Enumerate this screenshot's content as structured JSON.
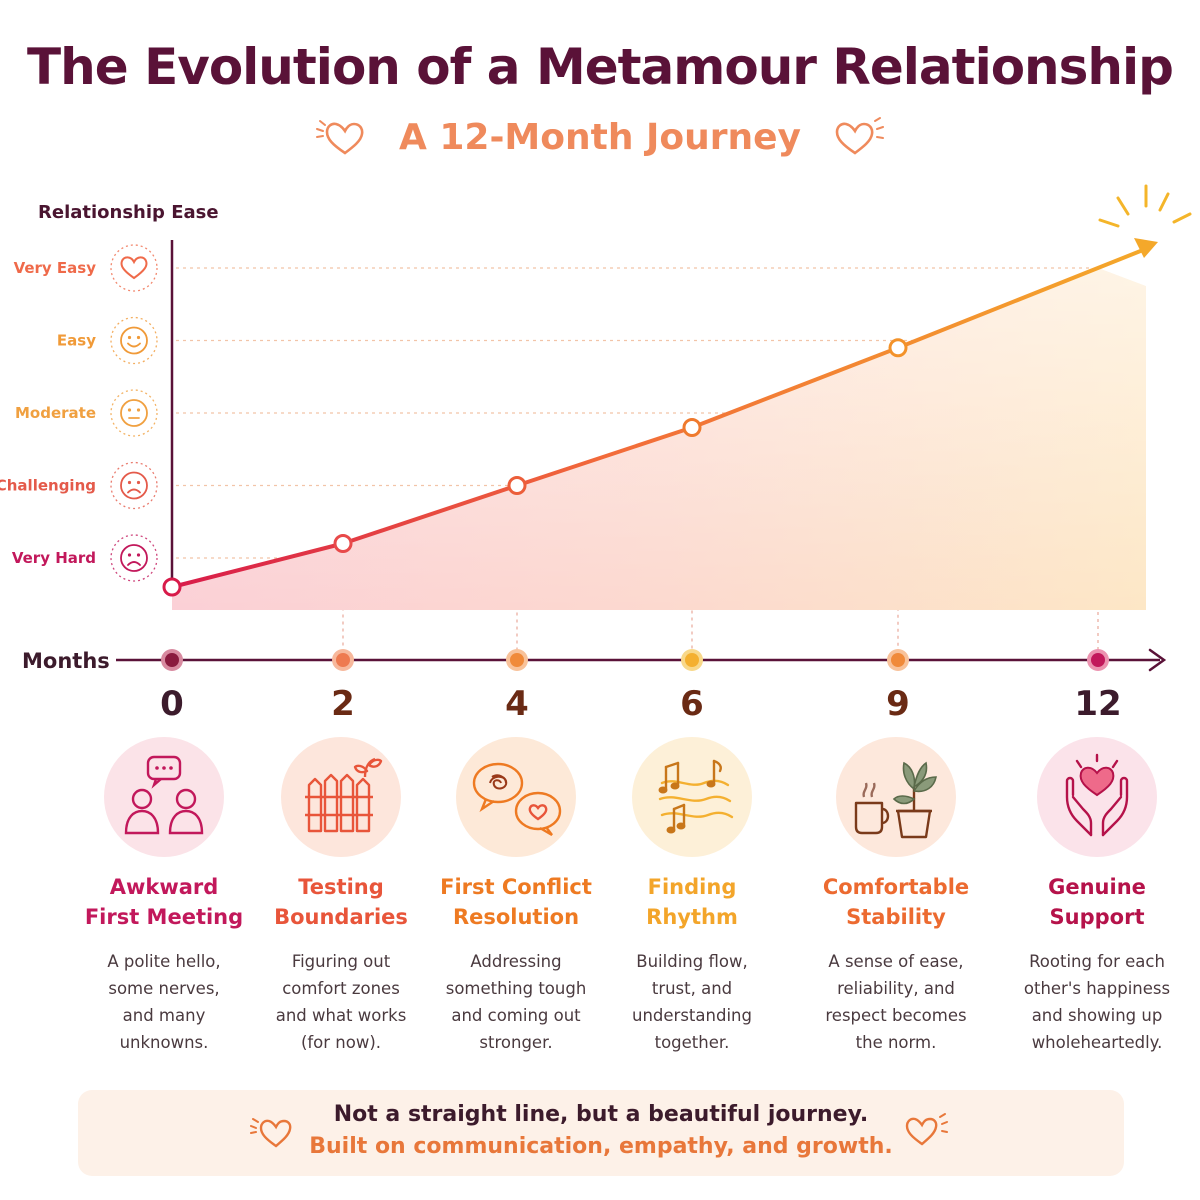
{
  "title": "The Evolution of a Metamour Relationship",
  "subtitle": "A 12-Month Journey",
  "colors": {
    "title": "#5a1238",
    "subtitle": "#ef8a5c",
    "axis": "#5a1238",
    "line_start": "#d81b4a",
    "line_end": "#f4a82a"
  },
  "chart_data": {
    "type": "line",
    "ylabel": "Relationship Ease",
    "xlabel": "Months",
    "y_levels": [
      {
        "label": "Very Hard",
        "icon": "sad-face-icon",
        "color": "#c2185b"
      },
      {
        "label": "Challenging",
        "icon": "frown-face-icon",
        "color": "#e45a4a"
      },
      {
        "label": "Moderate",
        "icon": "neutral-face-icon",
        "color": "#f0a040"
      },
      {
        "label": "Easy",
        "icon": "smile-face-icon",
        "color": "#f09a38"
      },
      {
        "label": "Very Easy",
        "icon": "heart-icon",
        "color": "#ef6a4a"
      }
    ],
    "ylim": [
      0.6,
      5
    ],
    "x": [
      0,
      2,
      4,
      6,
      9,
      12
    ],
    "y": [
      0.6,
      1.2,
      2.0,
      2.8,
      3.9,
      5.0
    ],
    "x_tick_labels": [
      "0",
      "2",
      "4",
      "6",
      "9",
      "12"
    ],
    "grid": "dashed horizontal",
    "fill": "gradient area under line"
  },
  "milestones": [
    {
      "month": "0",
      "title_line1": "Awkward",
      "title_line2": "First Meeting",
      "desc": [
        "A polite hello,",
        "some nerves,",
        "and many",
        "unknowns."
      ],
      "icon": "two-people-chat-icon",
      "color": "#c2185b",
      "bg": "#fbe3e8"
    },
    {
      "month": "2",
      "title_line1": "Testing",
      "title_line2": "Boundaries",
      "desc": [
        "Figuring out",
        "comfort zones",
        "and what works",
        "(for now)."
      ],
      "icon": "fence-sprout-icon",
      "color": "#e8553a",
      "bg": "#fde6dc"
    },
    {
      "month": "4",
      "title_line1": "First Conflict",
      "title_line2": "Resolution",
      "desc": [
        "Addressing",
        "something tough",
        "and coming out",
        "stronger."
      ],
      "icon": "speech-bubbles-heart-icon",
      "color": "#ee7a22",
      "bg": "#fde9d8"
    },
    {
      "month": "6",
      "title_line1": "Finding",
      "title_line2": "Rhythm",
      "desc": [
        "Building flow,",
        "trust, and",
        "understanding",
        "together."
      ],
      "icon": "music-notes-icon",
      "color": "#f3a52a",
      "bg": "#fdf0d8"
    },
    {
      "month": "9",
      "title_line1": "Comfortable",
      "title_line2": "Stability",
      "desc": [
        "A sense of ease,",
        "reliability, and",
        "respect becomes",
        "the norm."
      ],
      "icon": "coffee-plant-icon",
      "color": "#ec6a30",
      "bg": "#fde8dc"
    },
    {
      "month": "12",
      "title_line1": "Genuine",
      "title_line2": "Support",
      "desc": [
        "Rooting for each",
        "other's happiness",
        "and showing up",
        "wholeheartedly."
      ],
      "icon": "hands-heart-icon",
      "color": "#b5124a",
      "bg": "#fbe3ea"
    }
  ],
  "footer": {
    "line1": "Not a straight line, but a beautiful journey.",
    "line2": "Built on communication, empathy, and growth."
  }
}
